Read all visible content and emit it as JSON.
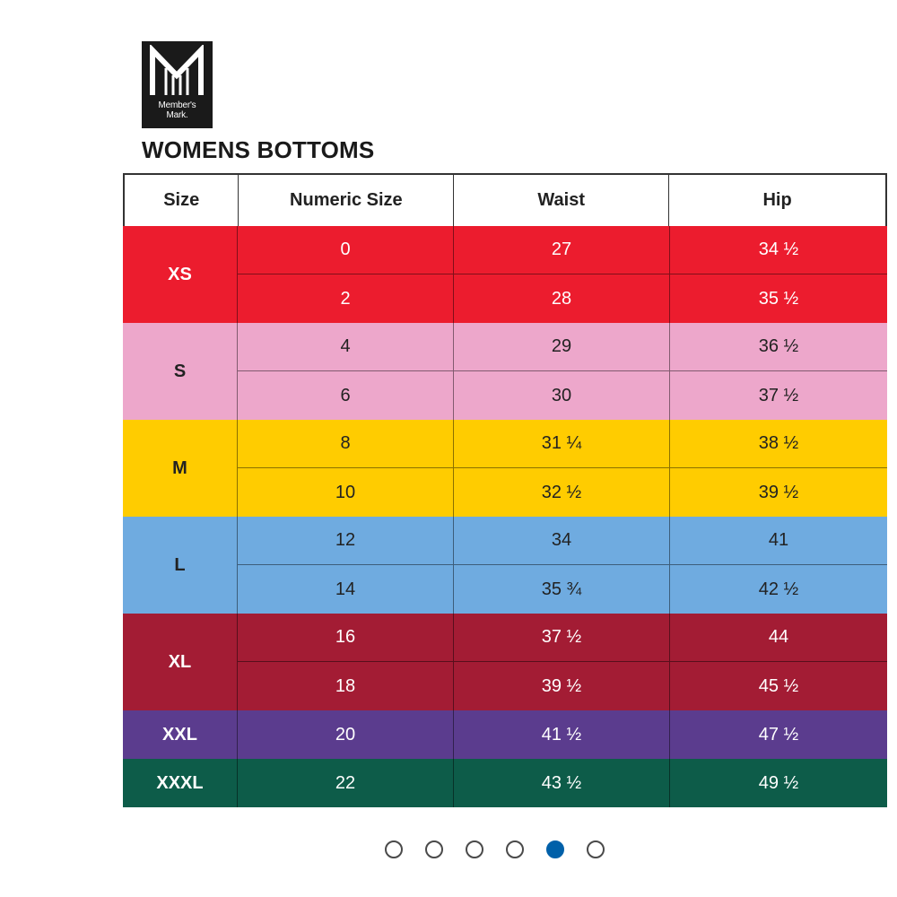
{
  "brand": {
    "logo_line1": "Member's",
    "logo_line2": "Mark."
  },
  "title": "WOMENS BOTTOMS",
  "headers": [
    "Size",
    "Numeric Size",
    "Waist",
    "Hip"
  ],
  "groups": [
    {
      "size": "XS",
      "bg": "#ec1c2e",
      "fg": "#ffffff",
      "rows": [
        [
          "0",
          "27",
          "34 ½"
        ],
        [
          "2",
          "28",
          "35 ½"
        ]
      ]
    },
    {
      "size": "S",
      "bg": "#eda7cb",
      "fg": "#222222",
      "rows": [
        [
          "4",
          "29",
          "36 ½"
        ],
        [
          "6",
          "30",
          "37 ½"
        ]
      ]
    },
    {
      "size": "M",
      "bg": "#ffcc00",
      "fg": "#222222",
      "rows": [
        [
          "8",
          "31 ¼",
          "38 ½"
        ],
        [
          "10",
          "32 ½",
          "39 ½"
        ]
      ]
    },
    {
      "size": "L",
      "bg": "#6fabe0",
      "fg": "#222222",
      "rows": [
        [
          "12",
          "34",
          "41"
        ],
        [
          "14",
          "35 ¾",
          "42 ½"
        ]
      ]
    },
    {
      "size": "XL",
      "bg": "#a31c34",
      "fg": "#ffffff",
      "rows": [
        [
          "16",
          "37 ½",
          "44"
        ],
        [
          "18",
          "39 ½",
          "45 ½"
        ]
      ]
    },
    {
      "size": "XXL",
      "bg": "#5b3c8e",
      "fg": "#ffffff",
      "rows": [
        [
          "20",
          "41 ½",
          "47 ½"
        ]
      ]
    },
    {
      "size": "XXXL",
      "bg": "#0d5c49",
      "fg": "#ffffff",
      "rows": [
        [
          "22",
          "43 ½",
          "49 ½"
        ]
      ]
    }
  ],
  "carousel": {
    "count": 6,
    "active_index": 4,
    "active_color": "#0060a9"
  }
}
